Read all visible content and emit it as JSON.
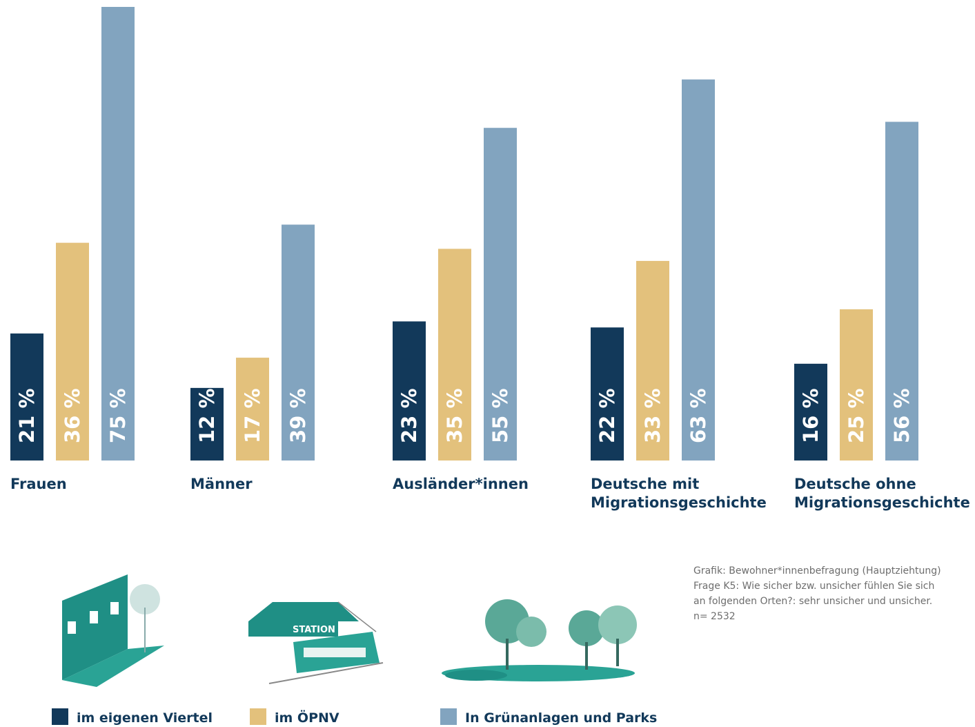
{
  "chart_data": {
    "type": "bar",
    "categories": [
      [
        "Frauen"
      ],
      [
        "Männer"
      ],
      [
        "Ausländer*innen"
      ],
      [
        "Deutsche mit",
        "Migrationsgeschichte"
      ],
      [
        "Deutsche ohne",
        "Migrationsgeschichte"
      ]
    ],
    "series": [
      {
        "name": "im eigenen Viertel",
        "color": "#12395a",
        "values": [
          21,
          12,
          23,
          22,
          16
        ],
        "value_labels": [
          "21 %",
          "12 %",
          "23 %",
          "22 %",
          "16 %"
        ]
      },
      {
        "name": "im ÖPNV",
        "color": "#e3c17c",
        "values": [
          36,
          17,
          35,
          33,
          25
        ],
        "value_labels": [
          "36 %",
          "17 %",
          "35 %",
          "33 %",
          "25 %"
        ]
      },
      {
        "name": "In Grünanlagen und Parks",
        "color": "#82a4bf",
        "values": [
          75,
          39,
          55,
          63,
          56
        ],
        "value_labels": [
          "75 %",
          "39 %",
          "55 %",
          "63 %",
          "56 %"
        ]
      }
    ],
    "notes": [
      "Grafik: Bewohner*innenbefragung (Hauptziehtung)",
      "Frage K5: Wie sicher bzw. unsicher fühlen Sie sich",
      "an folgenden Orten?: sehr unsicher und unsicher.",
      "n= 2532"
    ],
    "illustration_text": "STATION"
  }
}
